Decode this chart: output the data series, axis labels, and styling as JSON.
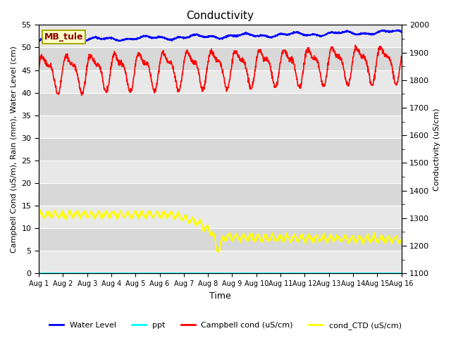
{
  "title": "Conductivity",
  "xlabel": "Time",
  "ylabel_left": "Campbell Cond (uS/m), Rain (mm), Water Level (cm)",
  "ylabel_right": "Conductivity (uS/cm)",
  "xlim_days": [
    0,
    15
  ],
  "ylim_left": [
    0,
    55
  ],
  "ylim_right": [
    1100,
    2000
  ],
  "x_tick_labels": [
    "Aug 1",
    "Aug 2",
    "Aug 3",
    "Aug 4",
    "Aug 5",
    "Aug 6",
    "Aug 7",
    "Aug 8",
    "Aug 9",
    "Aug 10",
    "Aug 11",
    "Aug 12",
    "Aug 13",
    "Aug 14",
    "Aug 15",
    "Aug 16"
  ],
  "station_label": "MB_tule",
  "plot_bg_color": "#e0e0e0",
  "stripe_color_light": "#e8e8e8",
  "stripe_color_dark": "#d0d0d0",
  "legend_entries": [
    "Water Level",
    "ppt",
    "Campbell cond (uS/cm)",
    "cond_CTD (uS/cm)"
  ],
  "legend_colors": [
    "blue",
    "cyan",
    "red",
    "yellow"
  ],
  "yticks_left": [
    0,
    5,
    10,
    15,
    20,
    25,
    30,
    35,
    40,
    45,
    50,
    55
  ],
  "yticks_right": [
    1100,
    1200,
    1300,
    1400,
    1500,
    1600,
    1700,
    1800,
    1900,
    2000
  ]
}
